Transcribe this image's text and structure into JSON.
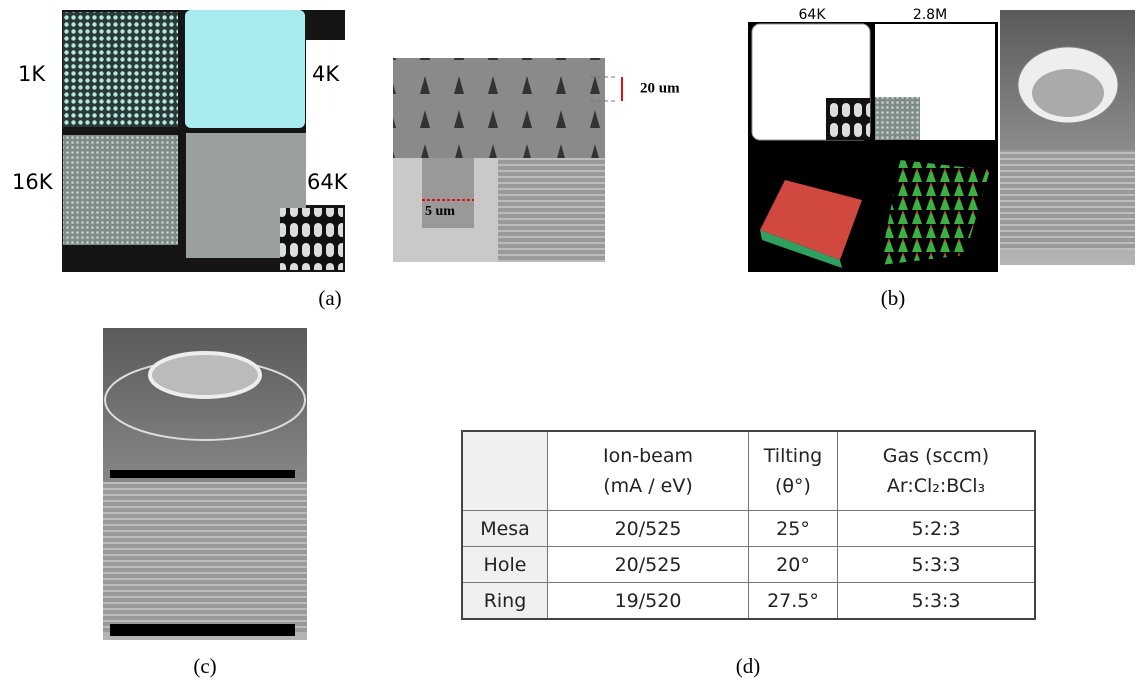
{
  "panels": {
    "a": {
      "label": "(a)",
      "array_labels": [
        "1K",
        "4K",
        "16K",
        "64K"
      ],
      "dimension_labels": [
        "20 um",
        "5 um"
      ]
    },
    "b": {
      "label": "(b)",
      "array_labels": [
        "64K",
        "2.8M"
      ]
    },
    "c": {
      "label": "(c)"
    },
    "d": {
      "label": "(d)"
    }
  },
  "table": {
    "header": [
      [
        "Ion-beam",
        "(mA / eV)"
      ],
      [
        "Tilting",
        "(θ°)"
      ],
      [
        "Gas (sccm)",
        "Ar:Cl₂:BCl₃"
      ]
    ],
    "rows": [
      [
        "Mesa",
        "20/525",
        "25°",
        "5:2:3"
      ],
      [
        "Hole",
        "20/525",
        "20°",
        "5:3:3"
      ],
      [
        "Ring",
        "19/520",
        "27.5°",
        "5:3:3"
      ]
    ]
  }
}
